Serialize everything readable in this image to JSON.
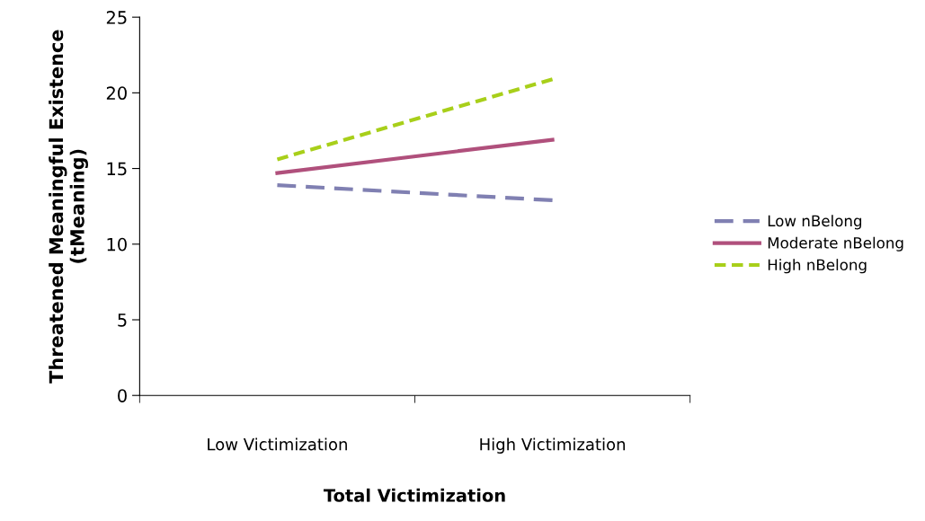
{
  "chart_data": {
    "type": "line",
    "xlabel": "Total Victimization",
    "ylabel": "Threatened Meaningful Existence\n(tMeaning)",
    "categories": [
      "Low Victimization",
      "High Victimization"
    ],
    "series": [
      {
        "name": "Low nBelong",
        "color": "#8080b2",
        "values": [
          13.9,
          12.9
        ],
        "line_style": "dashed"
      },
      {
        "name": "Moderate nBelong",
        "color": "#b0507c",
        "values": [
          14.7,
          16.9
        ],
        "line_style": "solid"
      },
      {
        "name": "High nBelong",
        "color": "#a8cf1a",
        "values": [
          15.6,
          20.9
        ],
        "line_style": "dotted"
      }
    ],
    "ylim": [
      0,
      25
    ],
    "yticks": [
      0,
      5,
      10,
      15,
      20,
      25
    ],
    "grid": false,
    "legend": "right",
    "marker": "none"
  }
}
